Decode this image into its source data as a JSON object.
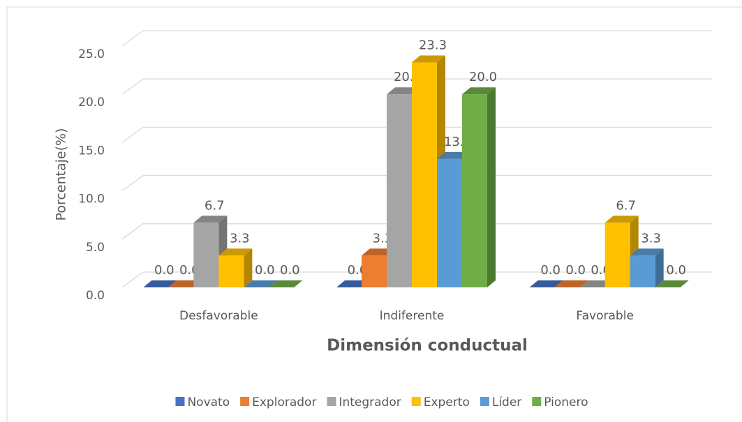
{
  "chart_data": {
    "type": "bar3d",
    "x_label": "Dimensión conductual",
    "y_label": "Porcentaje(%)",
    "categories": [
      "Desfavorable",
      "Indiferente",
      "Favorable"
    ],
    "series": [
      {
        "name": "Novato",
        "color": "#4472c4",
        "values": [
          0,
          0,
          0
        ],
        "value_labels": [
          "0.0",
          "0.0",
          "0.0"
        ]
      },
      {
        "name": "Explorador",
        "color": "#ed7d31",
        "values": [
          0,
          3.3,
          0
        ],
        "value_labels": [
          "0.0",
          "3.3",
          "0.0"
        ]
      },
      {
        "name": "Integrador",
        "color": "#a5a5a5",
        "values": [
          6.7,
          20,
          0
        ],
        "value_labels": [
          "6.7",
          "20.0",
          "0.0"
        ]
      },
      {
        "name": "Experto",
        "color": "#ffc000",
        "values": [
          3.3,
          23.3,
          6.7
        ],
        "value_labels": [
          "3.3",
          "23.3",
          "6.7"
        ]
      },
      {
        "name": "Líder",
        "color": "#5b9bd5",
        "values": [
          0,
          13.3,
          3.3
        ],
        "value_labels": [
          "0.0",
          "13.3",
          "3.3"
        ]
      },
      {
        "name": "Pionero",
        "color": "#70ad47",
        "values": [
          0,
          20,
          0
        ],
        "value_labels": [
          "0.0",
          "20.0",
          "0.0"
        ]
      }
    ],
    "ylim": [
      0,
      25
    ],
    "yticks": [
      {
        "value": 0,
        "label": "0.0"
      },
      {
        "value": 5,
        "label": "5.0"
      },
      {
        "value": 10,
        "label": "10.0"
      },
      {
        "value": 15,
        "label": "15.0"
      },
      {
        "value": 20,
        "label": "20.0"
      },
      {
        "value": 25,
        "label": "25.0"
      }
    ],
    "grid": true,
    "legend": "bottom"
  }
}
